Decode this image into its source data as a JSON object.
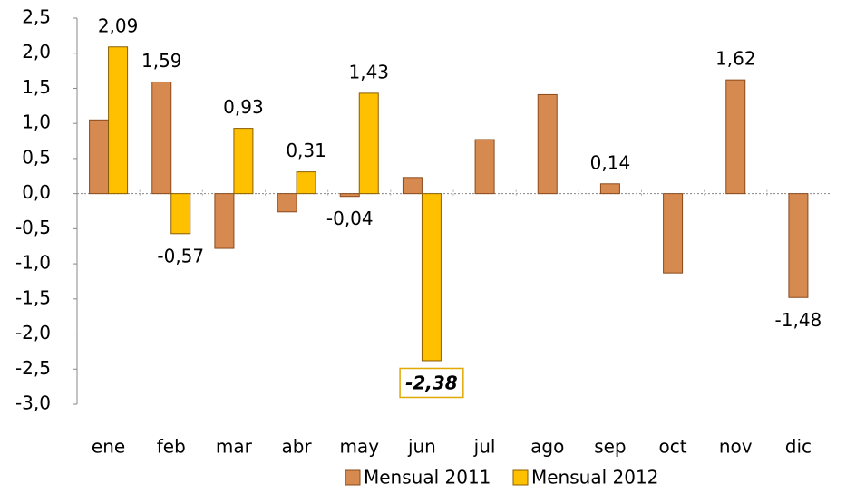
{
  "chart_data": {
    "type": "bar",
    "categories": [
      "ene",
      "feb",
      "mar",
      "abr",
      "may",
      "jun",
      "jul",
      "ago",
      "sep",
      "oct",
      "nov",
      "dic"
    ],
    "series": [
      {
        "name": "Mensual 2011",
        "color": "#d68a4f",
        "values": [
          1.05,
          1.59,
          -0.78,
          -0.26,
          -0.04,
          0.23,
          0.77,
          1.41,
          0.14,
          -1.13,
          1.62,
          -1.48
        ],
        "value_labels": [
          null,
          "1,59",
          null,
          null,
          "-0,04",
          null,
          null,
          null,
          "0,14",
          null,
          "1,62",
          "-1,48"
        ]
      },
      {
        "name": "Mensual 2012",
        "color": "#ffc000",
        "values": [
          2.09,
          -0.57,
          0.93,
          0.31,
          1.43,
          -2.38,
          null,
          null,
          null,
          null,
          null,
          null
        ],
        "value_labels": [
          "2,09",
          "-0,57",
          "0,93",
          "0,31",
          "1,43",
          "-2,38",
          null,
          null,
          null,
          null,
          null,
          null
        ]
      }
    ],
    "ylim": [
      -3.0,
      2.5
    ],
    "yticks": [
      {
        "value": -3.0,
        "label": "-3,0"
      },
      {
        "value": -2.5,
        "label": "-2,5"
      },
      {
        "value": -2.0,
        "label": "-2,0"
      },
      {
        "value": -1.5,
        "label": "-1,5"
      },
      {
        "value": -1.0,
        "label": "-1,0"
      },
      {
        "value": -0.5,
        "label": "-0,5"
      },
      {
        "value": 0.0,
        "label": "0,0"
      },
      {
        "value": 0.5,
        "label": "0,5"
      },
      {
        "value": 1.0,
        "label": "1,0"
      },
      {
        "value": 1.5,
        "label": "1,5"
      },
      {
        "value": 2.0,
        "label": "2,0"
      },
      {
        "value": 2.5,
        "label": "2,5"
      }
    ],
    "grid": false
  }
}
